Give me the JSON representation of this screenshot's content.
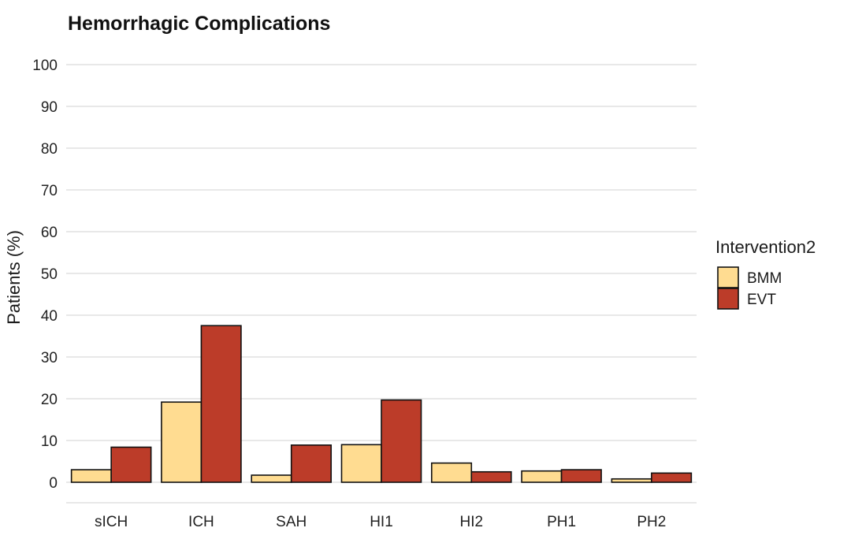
{
  "chart_data": {
    "type": "bar",
    "title": "Hemorrhagic Complications",
    "xlabel": "",
    "ylabel": "Patients (%)",
    "ylim": [
      0,
      100
    ],
    "yticks": [
      0,
      10,
      20,
      30,
      40,
      50,
      60,
      70,
      80,
      90,
      100
    ],
    "categories": [
      "sICH",
      "ICH",
      "SAH",
      "HI1",
      "HI2",
      "PH1",
      "PH2"
    ],
    "series": [
      {
        "name": "BMM",
        "color": "#FFDC91",
        "values": [
          3.0,
          19.2,
          1.7,
          9.0,
          4.6,
          2.7,
          0.8
        ]
      },
      {
        "name": "EVT",
        "color": "#BC3C29",
        "values": [
          8.4,
          37.5,
          8.9,
          19.7,
          2.5,
          3.0,
          2.2
        ]
      }
    ],
    "legend": {
      "title": "Intervention2",
      "position": "right"
    },
    "grid": true
  }
}
